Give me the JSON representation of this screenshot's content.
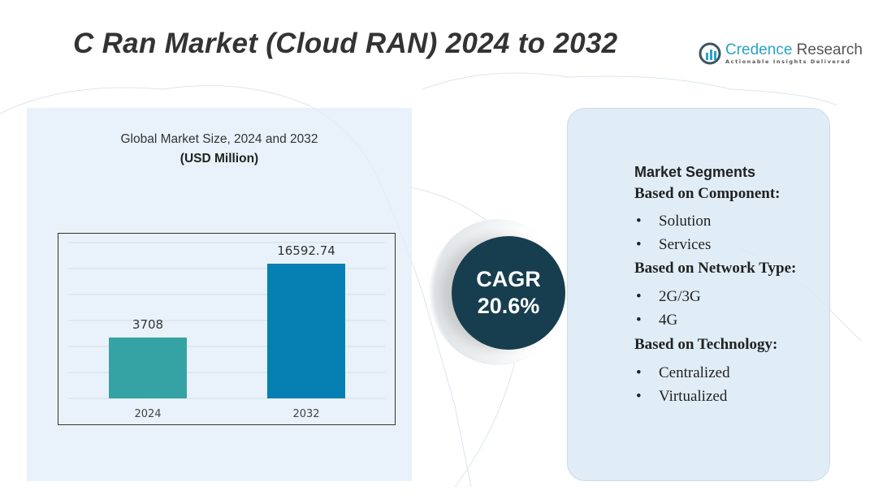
{
  "title": "C Ran Market (Cloud RAN) 2024 to 2032",
  "logo": {
    "name_a": "Credence",
    "name_b": " Research",
    "tagline": "Actionable Insights Delivered"
  },
  "left_panel": {
    "subtitle": "Global Market Size, 2024 and 2032",
    "unit": "(USD Million)"
  },
  "chart_data": {
    "type": "bar",
    "categories": [
      "2024",
      "2032"
    ],
    "values": [
      3708,
      16592.74
    ],
    "data_labels": [
      "3708",
      "16592.74"
    ],
    "colors": [
      "#35a3a3",
      "#0680b2"
    ],
    "grid": true,
    "title": "Global Market Size, 2024 and 2032",
    "ylabel": "(USD Million)"
  },
  "cagr": {
    "label": "CAGR",
    "value": "20.6%"
  },
  "segments": {
    "title": "Market Segments",
    "groups": [
      {
        "heading": "Based on Component:",
        "items": [
          "Solution",
          "Services"
        ]
      },
      {
        "heading": "Based on Network Type:",
        "items": [
          "2G/3G",
          "4G"
        ]
      },
      {
        "heading": "Based on Technology:",
        "items": [
          "Centralized",
          "Virtualized"
        ]
      }
    ]
  }
}
